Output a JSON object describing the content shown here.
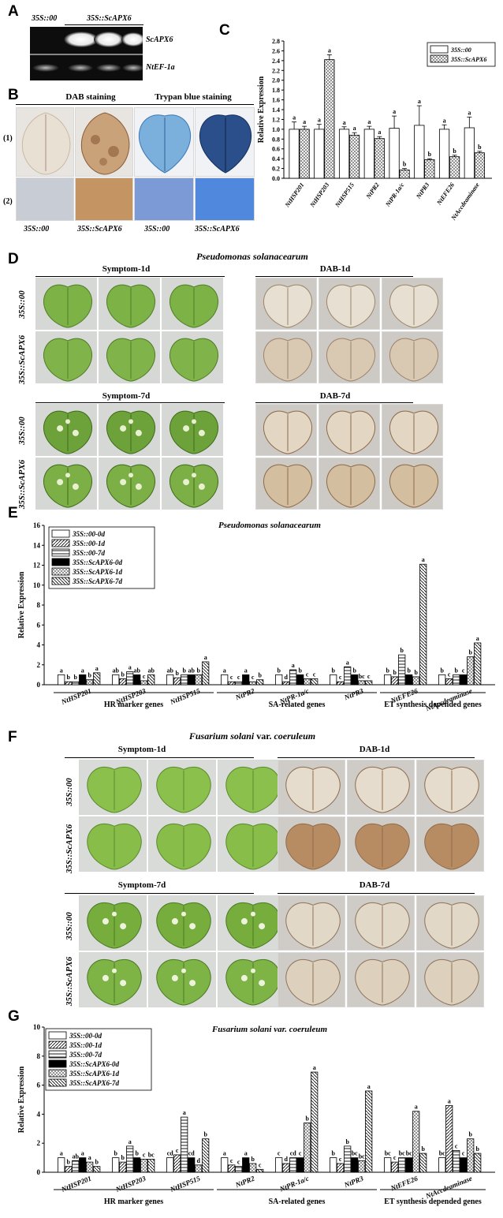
{
  "panel_letters": {
    "a": "A",
    "b": "B",
    "c": "C",
    "d": "D",
    "e": "E",
    "f": "F",
    "g": "G"
  },
  "panel_a": {
    "lane_label_control": "35S::00",
    "lane_label_transgenic": "35S::ScAPX6",
    "band_label_top": "ScAPX6",
    "band_label_bottom": "NtEF-1a"
  },
  "panel_b": {
    "dab_title": "DAB staining",
    "trypan_title": "Trypan blue staining",
    "row1": "(1)",
    "row2": "(2)",
    "col_labels": [
      "35S::00",
      "35S::ScAPX6",
      "35S::00",
      "35S::ScAPX6"
    ]
  },
  "panel_d": {
    "title": "Pseudomonas solanacearum",
    "symptom_1d": "Symptom-1d",
    "symptom_7d": "Symptom-7d",
    "dab_1d": "DAB-1d",
    "dab_7d": "DAB-7d",
    "row_control": "35S::00",
    "row_transgenic": "35S::ScAPX6"
  },
  "panel_f": {
    "title_italic": "Fusarium solani",
    "title_plain": " var. ",
    "title_italic2": "coeruleum",
    "symptom_1d": "Symptom-1d",
    "symptom_7d": "Symptom-7d",
    "dab_1d": "DAB-1d",
    "dab_7d": "DAB-7d",
    "row_control": "35S::00",
    "row_transgenic": "35S::ScAPX6"
  },
  "colors": {
    "green_leaf": "#7fb043",
    "dab_leaf": "#e6ddcf",
    "trypan_blue": "#5a8fc8",
    "gel_bg": "#0d0d0d"
  },
  "chart_data": [
    {
      "panel": "C",
      "type": "bar",
      "ylabel": "Relative Expression",
      "ylim": [
        0,
        2.8
      ],
      "yticks": [
        "0.0",
        "0.2",
        "0.4",
        "0.6",
        "0.8",
        "1.0",
        "1.2",
        "1.4",
        "1.6",
        "1.8",
        "2.0",
        "2.2",
        "2.4",
        "2.6",
        "2.8"
      ],
      "categories": [
        "NtHSP201",
        "NtHSP203",
        "NtHSP515",
        "NtPR2",
        "NtPR-1a/c",
        "NtPR3",
        "NtEFE26",
        "NtAccdeaminase"
      ],
      "legend_position": "top-right",
      "series": [
        {
          "name": "35S::00",
          "pattern": "open",
          "values": [
            1.0,
            1.0,
            1.0,
            1.0,
            1.02,
            1.08,
            1.0,
            1.03
          ],
          "errors": [
            0.15,
            0.1,
            0.05,
            0.06,
            0.25,
            0.4,
            0.09,
            0.22
          ],
          "letters": [
            "a",
            "a",
            "a",
            "a",
            "a",
            "a",
            "a",
            "a"
          ]
        },
        {
          "name": "35S::ScAPX6",
          "pattern": "crosshatch",
          "values": [
            1.0,
            2.42,
            0.88,
            0.81,
            0.17,
            0.38,
            0.44,
            0.52
          ],
          "errors": [
            0.06,
            0.1,
            0.05,
            0.04,
            0.03,
            0.02,
            0.03,
            0.03
          ],
          "letters": [
            "a",
            "a",
            "a",
            "a",
            "b",
            "b",
            "b",
            "b"
          ]
        }
      ]
    },
    {
      "panel": "E",
      "type": "bar",
      "title": "Pseudomonas solanacearum",
      "ylabel": "Relative Expression",
      "ylim": [
        0,
        16
      ],
      "yticks": [
        "0",
        "2",
        "4",
        "6",
        "8",
        "10",
        "12",
        "14",
        "16"
      ],
      "categories": [
        "NtHSP201",
        "NtHSP203",
        "NtHSP515",
        "NtPR2",
        "NtPR-1a/c",
        "NtPR3",
        "NtEFE26",
        "NtAccdeaminase"
      ],
      "groups": [
        "HR marker genes",
        "SA-related genes",
        "ET synthesis depended genes"
      ],
      "legend_position": "top-left",
      "series": [
        {
          "name": "35S::00-0d",
          "pattern": "open",
          "values": [
            1.0,
            1.0,
            1.0,
            1.0,
            1.0,
            1.0,
            1.0,
            1.0
          ],
          "letters": [
            "a",
            "ab",
            "ab",
            "a",
            "b",
            "b",
            "b",
            "b"
          ]
        },
        {
          "name": "35S::00-1d",
          "pattern": "diag",
          "values": [
            0.3,
            0.6,
            0.7,
            0.3,
            0.3,
            0.3,
            0.8,
            0.6
          ],
          "letters": [
            "b",
            "b",
            "b",
            "c",
            "d",
            "c",
            "b",
            "c"
          ]
        },
        {
          "name": "35S::00-7d",
          "pattern": "hstripe",
          "values": [
            0.3,
            1.3,
            1.0,
            0.3,
            1.5,
            1.8,
            3.0,
            1.0
          ],
          "letters": [
            "b",
            "a",
            "b",
            "c",
            "a",
            "a",
            "b",
            "b"
          ]
        },
        {
          "name": "35S::ScAPX6-0d",
          "pattern": "solid",
          "values": [
            1.0,
            1.0,
            1.0,
            1.0,
            1.0,
            1.0,
            1.0,
            1.0
          ],
          "letters": [
            "a",
            "ab",
            "ab",
            "a",
            "b",
            "b",
            "b",
            "c"
          ]
        },
        {
          "name": "35S::ScAPX6-1d",
          "pattern": "crosshatch",
          "values": [
            0.5,
            0.4,
            1.0,
            0.3,
            0.6,
            0.4,
            0.8,
            2.8
          ],
          "letters": [
            "b",
            "c",
            "b",
            "c",
            "c",
            "bc",
            "b",
            "b"
          ]
        },
        {
          "name": "35S::ScAPX6-7d",
          "pattern": "backdiag",
          "values": [
            1.2,
            1.0,
            2.3,
            0.5,
            0.6,
            0.4,
            12.1,
            4.2
          ],
          "letters": [
            "a",
            "ab",
            "a",
            "b",
            "c",
            "c",
            "a",
            "a"
          ]
        }
      ]
    },
    {
      "panel": "G",
      "type": "bar",
      "title": "Fusarium solani var. coeruleum",
      "ylabel": "Relative Expression",
      "ylim": [
        0,
        10
      ],
      "yticks": [
        "0",
        "2",
        "4",
        "6",
        "8",
        "10"
      ],
      "categories": [
        "NtHSP201",
        "NtHSP203",
        "NtHSP515",
        "NtPR2",
        "NtPR-1a/c",
        "NtPR3",
        "NtEFE26",
        "NtAccdeaminase"
      ],
      "groups": [
        "HR marker genes",
        "SA-related genes",
        "ET synthesis depended genes"
      ],
      "legend_position": "top-left",
      "series": [
        {
          "name": "35S::00-0d",
          "pattern": "open",
          "values": [
            1.0,
            1.0,
            1.0,
            1.0,
            1.0,
            1.0,
            1.0,
            1.0
          ],
          "letters": [
            "a",
            "b",
            "cd",
            "a",
            "c",
            "b",
            "bc",
            "bc"
          ]
        },
        {
          "name": "35S::00-1d",
          "pattern": "diag",
          "values": [
            0.4,
            0.7,
            1.2,
            0.5,
            0.6,
            0.6,
            0.7,
            4.6
          ],
          "letters": [
            "b",
            "b",
            "c",
            "c",
            "d",
            "c",
            "c",
            "a"
          ]
        },
        {
          "name": "35S::00-7d",
          "pattern": "hstripe",
          "values": [
            0.8,
            1.8,
            3.8,
            0.4,
            1.0,
            1.8,
            1.0,
            1.5
          ],
          "letters": [
            "ab",
            "a",
            "a",
            "c",
            "cd",
            "b",
            "bc",
            "c"
          ]
        },
        {
          "name": "35S::ScAPX6-0d",
          "pattern": "solid",
          "values": [
            1.0,
            1.0,
            1.0,
            1.0,
            1.0,
            1.0,
            1.0,
            1.0
          ],
          "letters": [
            "a",
            "b",
            "cd",
            "a",
            "c",
            "bc",
            "bc",
            "c"
          ]
        },
        {
          "name": "35S::ScAPX6-1d",
          "pattern": "crosshatch",
          "values": [
            0.7,
            0.9,
            0.5,
            0.6,
            3.4,
            0.8,
            4.2,
            2.3
          ],
          "letters": [
            "a",
            "c",
            "d",
            "b",
            "b",
            "bc",
            "a",
            "b"
          ]
        },
        {
          "name": "35S::ScAPX6-7d",
          "pattern": "backdiag",
          "values": [
            0.4,
            0.9,
            2.3,
            0.2,
            6.9,
            5.6,
            1.3,
            1.3
          ],
          "letters": [
            "b",
            "bc",
            "b",
            "c",
            "a",
            "a",
            "b",
            "b"
          ]
        }
      ]
    }
  ]
}
